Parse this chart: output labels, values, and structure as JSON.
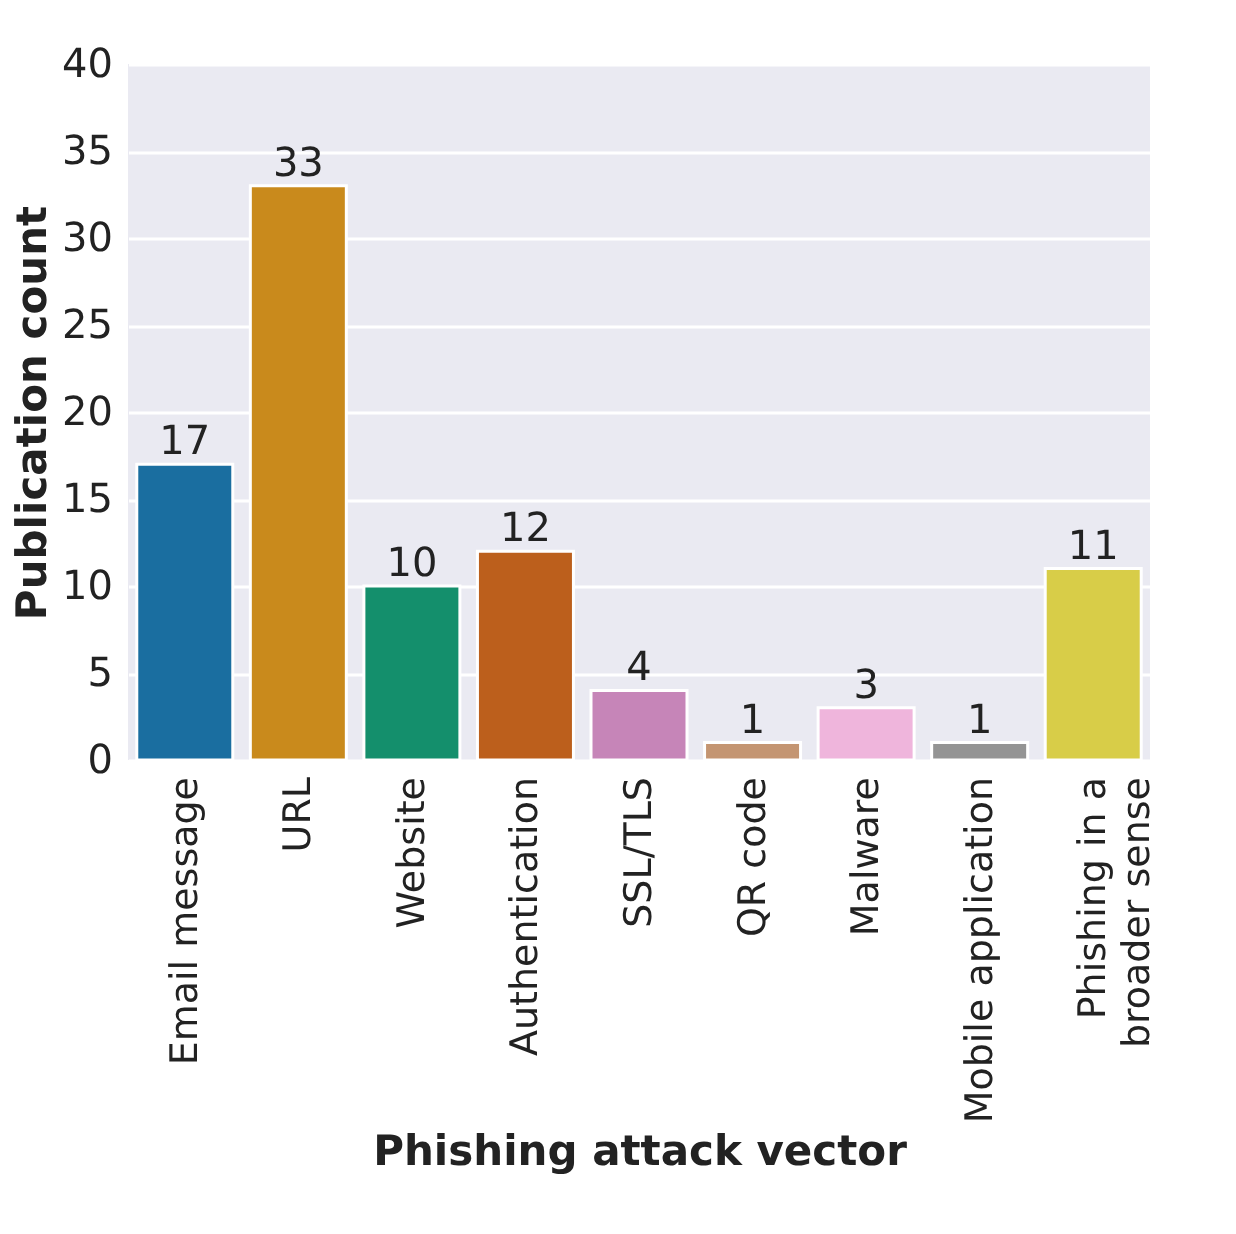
{
  "chart_data": {
    "type": "bar",
    "xlabel": "Phishing attack vector",
    "ylabel": "Publication count",
    "categories": [
      "Email message",
      "URL",
      "Website",
      "Authentication",
      "SSL/TLS",
      "QR code",
      "Malware",
      "Mobile application",
      "Phishing in a broader sense"
    ],
    "values": [
      17,
      33,
      10,
      12,
      4,
      1,
      3,
      1,
      11
    ],
    "colors": [
      "#1a6ea0",
      "#c98a1c",
      "#148f6c",
      "#bc5f1c",
      "#c685b8",
      "#c49572",
      "#efb5dc",
      "#949494",
      "#d8cd48"
    ],
    "ylim": [
      0,
      40
    ],
    "yticks": [
      0,
      5,
      10,
      15,
      20,
      25,
      30,
      35,
      40
    ],
    "grid": "y",
    "data_labels": true
  }
}
